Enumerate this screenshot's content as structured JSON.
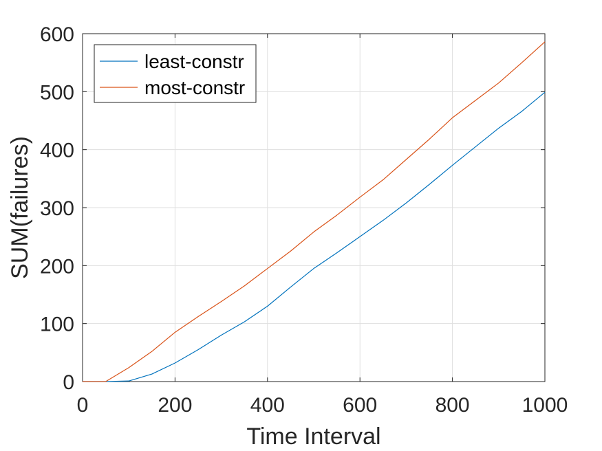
{
  "chart_data": {
    "type": "line",
    "title": "",
    "xlabel": "Time Interval",
    "ylabel": "SUM(failures)",
    "xlim": [
      0,
      1000
    ],
    "ylim": [
      0,
      600
    ],
    "xticks": [
      0,
      200,
      400,
      600,
      800,
      1000
    ],
    "yticks": [
      0,
      100,
      200,
      300,
      400,
      500,
      600
    ],
    "xtick_labels": [
      "0",
      "200",
      "400",
      "600",
      "800",
      "1000"
    ],
    "ytick_labels": [
      "0",
      "100",
      "200",
      "300",
      "400",
      "500",
      "600"
    ],
    "grid": true,
    "legend_position": "top-left",
    "series": [
      {
        "name": "least-constr",
        "color": "#0072BD",
        "x": [
          0,
          50,
          100,
          150,
          200,
          250,
          300,
          350,
          400,
          450,
          500,
          550,
          600,
          650,
          700,
          750,
          800,
          850,
          900,
          950,
          1000
        ],
        "y": [
          0,
          0,
          1,
          13,
          32,
          55,
          80,
          103,
          130,
          163,
          195,
          222,
          250,
          278,
          308,
          340,
          373,
          405,
          437,
          466,
          499
        ]
      },
      {
        "name": "most-constr",
        "color": "#D95319",
        "x": [
          0,
          50,
          100,
          150,
          200,
          250,
          300,
          350,
          400,
          450,
          500,
          550,
          600,
          650,
          700,
          750,
          800,
          850,
          900,
          950,
          1000
        ],
        "y": [
          0,
          0,
          24,
          52,
          85,
          112,
          138,
          165,
          195,
          225,
          258,
          287,
          318,
          348,
          383,
          418,
          455,
          485,
          515,
          550,
          586
        ]
      }
    ]
  }
}
